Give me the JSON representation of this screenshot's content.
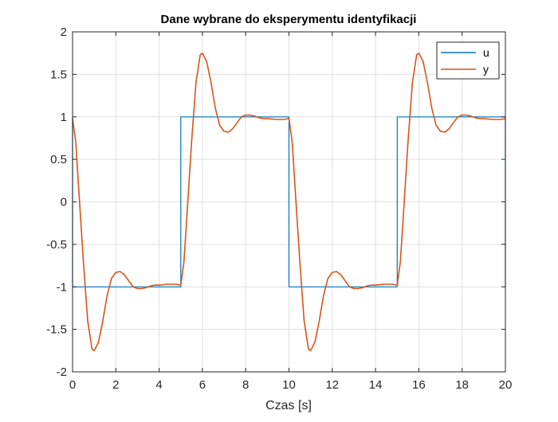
{
  "chart_data": {
    "type": "line",
    "title": "Dane wybrane do eksperymentu identyfikacji",
    "xlabel": "Czas [s]",
    "ylabel": "",
    "xlim": [
      0,
      20
    ],
    "ylim": [
      -2,
      2
    ],
    "xticks": [
      0,
      2,
      4,
      6,
      8,
      10,
      12,
      14,
      16,
      18,
      20
    ],
    "yticks": [
      -2,
      -1.5,
      -1,
      -0.5,
      0,
      0.5,
      1,
      1.5,
      2
    ],
    "xtick_labels": [
      "0",
      "2",
      "4",
      "6",
      "8",
      "10",
      "12",
      "14",
      "16",
      "18",
      "20"
    ],
    "ytick_labels": [
      "-2",
      "-1.5",
      "-1",
      "-0.5",
      "0",
      "0.5",
      "1",
      "1.5",
      "2"
    ],
    "grid": true,
    "legend_position": "top-right",
    "series": [
      {
        "name": "u",
        "color": "#0072BD",
        "x": [
          0,
          0,
          5,
          5,
          10,
          10,
          15,
          15,
          20,
          20
        ],
        "y": [
          1,
          -1,
          -1,
          1,
          1,
          -1,
          -1,
          1,
          1,
          -1
        ]
      },
      {
        "name": "y",
        "color": "#D95319",
        "x": [
          0,
          0.15,
          0.3,
          0.5,
          0.7,
          0.9,
          1.0,
          1.2,
          1.4,
          1.6,
          1.8,
          2.0,
          2.2,
          2.4,
          2.6,
          2.8,
          3.0,
          3.2,
          3.4,
          3.6,
          3.8,
          4.0,
          4.4,
          4.8,
          5.0,
          5.15,
          5.3,
          5.5,
          5.7,
          5.9,
          6.0,
          6.2,
          6.4,
          6.6,
          6.8,
          7.0,
          7.2,
          7.4,
          7.6,
          7.8,
          8.0,
          8.2,
          8.4,
          8.6,
          8.8,
          9.0,
          9.4,
          9.8,
          10.0,
          10.15,
          10.3,
          10.5,
          10.7,
          10.9,
          11.0,
          11.2,
          11.4,
          11.6,
          11.8,
          12.0,
          12.2,
          12.4,
          12.6,
          12.8,
          13.0,
          13.2,
          13.4,
          13.6,
          13.8,
          14.0,
          14.4,
          14.8,
          15.0,
          15.15,
          15.3,
          15.5,
          15.7,
          15.9,
          16.0,
          16.2,
          16.4,
          16.6,
          16.8,
          17.0,
          17.2,
          17.4,
          17.6,
          17.8,
          18.0,
          18.2,
          18.4,
          18.6,
          18.8,
          19.0,
          19.4,
          19.8,
          20.0
        ],
        "y": [
          0.98,
          0.7,
          0.1,
          -0.7,
          -1.4,
          -1.73,
          -1.75,
          -1.65,
          -1.4,
          -1.1,
          -0.9,
          -0.83,
          -0.82,
          -0.86,
          -0.93,
          -1.0,
          -1.02,
          -1.02,
          -1.01,
          -0.99,
          -0.98,
          -0.98,
          -0.97,
          -0.97,
          -0.98,
          -0.7,
          -0.1,
          0.7,
          1.4,
          1.73,
          1.75,
          1.65,
          1.4,
          1.1,
          0.9,
          0.83,
          0.82,
          0.86,
          0.93,
          1.0,
          1.02,
          1.02,
          1.01,
          0.99,
          0.98,
          0.98,
          0.97,
          0.97,
          0.98,
          0.7,
          0.1,
          -0.7,
          -1.4,
          -1.73,
          -1.75,
          -1.65,
          -1.4,
          -1.1,
          -0.9,
          -0.83,
          -0.82,
          -0.86,
          -0.93,
          -1.0,
          -1.02,
          -1.02,
          -1.01,
          -0.99,
          -0.98,
          -0.98,
          -0.97,
          -0.97,
          -0.98,
          -0.7,
          -0.1,
          0.7,
          1.4,
          1.73,
          1.75,
          1.65,
          1.4,
          1.1,
          0.9,
          0.83,
          0.82,
          0.86,
          0.93,
          1.0,
          1.02,
          1.02,
          1.01,
          0.99,
          0.98,
          0.98,
          0.97,
          0.97,
          0.98
        ]
      }
    ]
  }
}
